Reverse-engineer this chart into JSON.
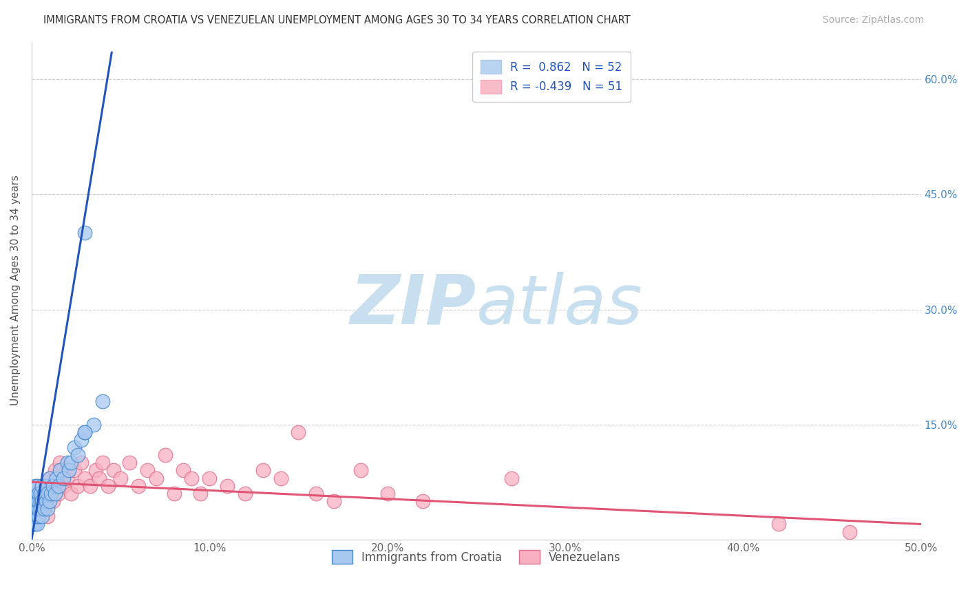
{
  "title": "IMMIGRANTS FROM CROATIA VS VENEZUELAN UNEMPLOYMENT AMONG AGES 30 TO 34 YEARS CORRELATION CHART",
  "source": "Source: ZipAtlas.com",
  "ylabel": "Unemployment Among Ages 30 to 34 years",
  "xlim": [
    0,
    0.5
  ],
  "ylim": [
    0,
    0.65
  ],
  "xticks": [
    0.0,
    0.1,
    0.2,
    0.3,
    0.4,
    0.5
  ],
  "xtick_labels": [
    "0.0%",
    "10.0%",
    "20.0%",
    "30.0%",
    "40.0%",
    "50.0%"
  ],
  "yticks": [
    0.0,
    0.15,
    0.3,
    0.45,
    0.6
  ],
  "ytick_labels": [
    "",
    "15.0%",
    "30.0%",
    "45.0%",
    "60.0%"
  ],
  "legend_entries": [
    {
      "label": "R =  0.862   N = 52",
      "facecolor": "#b8d4f0",
      "edgecolor": "#b0c8e8"
    },
    {
      "label": "R = -0.439   N = 51",
      "facecolor": "#f8bcc8",
      "edgecolor": "#f0aabb"
    }
  ],
  "croatia_fill": "#a8c8f0",
  "croatia_edge": "#4488cc",
  "venezuela_fill": "#f8b0c0",
  "venezuela_edge": "#e07090",
  "croatia_line_color": "#2255bb",
  "venezuela_line_color": "#e05575",
  "watermark_zip": "ZIP",
  "watermark_atlas": "atlas",
  "watermark_color": "#c8dff0",
  "croatia_scatter_x": [
    0.001,
    0.001,
    0.001,
    0.001,
    0.001,
    0.002,
    0.002,
    0.002,
    0.002,
    0.002,
    0.002,
    0.003,
    0.003,
    0.003,
    0.003,
    0.003,
    0.004,
    0.004,
    0.004,
    0.004,
    0.005,
    0.005,
    0.005,
    0.006,
    0.006,
    0.006,
    0.007,
    0.007,
    0.008,
    0.008,
    0.009,
    0.009,
    0.01,
    0.01,
    0.011,
    0.012,
    0.013,
    0.014,
    0.015,
    0.016,
    0.018,
    0.02,
    0.021,
    0.022,
    0.024,
    0.026,
    0.028,
    0.03,
    0.035,
    0.04,
    0.03,
    0.03
  ],
  "croatia_scatter_y": [
    0.02,
    0.03,
    0.04,
    0.05,
    0.06,
    0.02,
    0.03,
    0.04,
    0.05,
    0.06,
    0.07,
    0.02,
    0.03,
    0.04,
    0.05,
    0.07,
    0.03,
    0.04,
    0.05,
    0.06,
    0.04,
    0.05,
    0.06,
    0.03,
    0.05,
    0.07,
    0.04,
    0.06,
    0.05,
    0.07,
    0.04,
    0.06,
    0.05,
    0.08,
    0.06,
    0.07,
    0.06,
    0.08,
    0.07,
    0.09,
    0.08,
    0.1,
    0.09,
    0.1,
    0.12,
    0.11,
    0.13,
    0.14,
    0.15,
    0.18,
    0.14,
    0.4
  ],
  "venezuela_scatter_x": [
    0.001,
    0.002,
    0.003,
    0.004,
    0.005,
    0.006,
    0.007,
    0.008,
    0.009,
    0.01,
    0.012,
    0.013,
    0.015,
    0.016,
    0.018,
    0.02,
    0.022,
    0.024,
    0.026,
    0.028,
    0.03,
    0.033,
    0.036,
    0.038,
    0.04,
    0.043,
    0.046,
    0.05,
    0.055,
    0.06,
    0.065,
    0.07,
    0.075,
    0.08,
    0.085,
    0.09,
    0.095,
    0.1,
    0.11,
    0.12,
    0.13,
    0.14,
    0.15,
    0.16,
    0.17,
    0.185,
    0.2,
    0.22,
    0.27,
    0.42,
    0.46
  ],
  "venezuela_scatter_y": [
    0.05,
    0.04,
    0.06,
    0.03,
    0.07,
    0.05,
    0.04,
    0.06,
    0.03,
    0.08,
    0.05,
    0.09,
    0.06,
    0.1,
    0.07,
    0.08,
    0.06,
    0.09,
    0.07,
    0.1,
    0.08,
    0.07,
    0.09,
    0.08,
    0.1,
    0.07,
    0.09,
    0.08,
    0.1,
    0.07,
    0.09,
    0.08,
    0.11,
    0.06,
    0.09,
    0.08,
    0.06,
    0.08,
    0.07,
    0.06,
    0.09,
    0.08,
    0.14,
    0.06,
    0.05,
    0.09,
    0.06,
    0.05,
    0.08,
    0.02,
    0.01
  ],
  "croatia_trend_x": [
    0.0,
    0.045
  ],
  "croatia_trend_y": [
    0.0,
    0.635
  ],
  "venezuela_trend_x": [
    0.0,
    0.5
  ],
  "venezuela_trend_y": [
    0.075,
    0.02
  ]
}
